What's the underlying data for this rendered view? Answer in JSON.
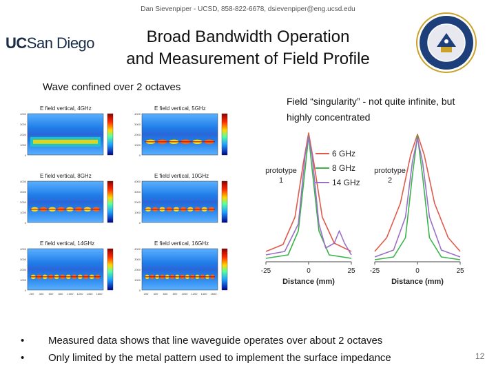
{
  "header": {
    "author_line": "Dan Sievenpiper - UCSD, 858-822-6678, dsievenpiper@eng.ucsd.edu",
    "logo_uc": "UC",
    "logo_rest": "San Diego",
    "title_line1": "Broad Bandwidth Operation",
    "title_line2": "and Measurement of Field Profile"
  },
  "left": {
    "label": "Wave confined over 2 octaves",
    "panels": [
      {
        "title": "E field vertical, 4GHz"
      },
      {
        "title": "E field vertical, 5GHz"
      },
      {
        "title": "E field vertical, 8GHz"
      },
      {
        "title": "E field vertical, 10GHz"
      },
      {
        "title": "E field vertical, 14GHz"
      },
      {
        "title": "E field vertical, 16GHz"
      }
    ],
    "y_ticks": [
      "4000",
      "3500",
      "3000",
      "2500",
      "2000",
      "1500",
      "1000",
      "500",
      "0"
    ],
    "x_ticks": [
      "200",
      "400",
      "600",
      "800",
      "1000",
      "1200",
      "1400",
      "1600"
    ]
  },
  "right": {
    "label": "Field “singularity” - not quite infinite, but highly concentrated"
  },
  "chart_data": {
    "type": "line",
    "xlabel": "Distance (mm)",
    "xlim": [
      -25,
      25
    ],
    "x_ticks": [
      "-25",
      "0",
      "25"
    ],
    "legend": [
      "6 GHz",
      "8 GHz",
      "14 GHz"
    ],
    "colors": {
      "6 GHz": "#e05a4a",
      "8 GHz": "#3bb34a",
      "14 GHz": "#9b6fc8"
    },
    "subplots": [
      {
        "label_line1": "prototype",
        "label_line2": "1"
      },
      {
        "label_line1": "prototype",
        "label_line2": "2"
      }
    ]
  },
  "bullets": [
    "Measured data shows that line waveguide operates over about 2 octaves",
    "Only limited by the metal pattern used to implement the surface impedance"
  ],
  "bullet_symbol": "•",
  "page_number": "12"
}
